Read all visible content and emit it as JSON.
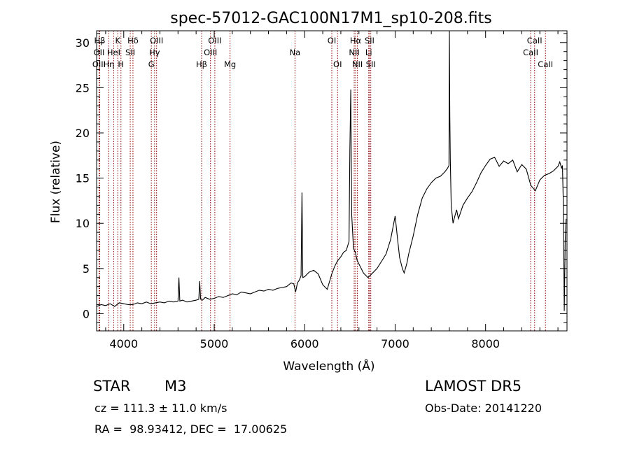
{
  "chart_data": {
    "type": "line",
    "title": "spec-57012-GAC100N17M1_sp10-208.fits",
    "xlabel": "Wavelength (Å)",
    "ylabel": "Flux (relative)",
    "xlim": [
      3700,
      8900
    ],
    "ylim": [
      -1.9,
      31.3
    ],
    "xticks": [
      4000,
      5000,
      6000,
      7000,
      8000
    ],
    "yticks": [
      0,
      5,
      10,
      15,
      20,
      25,
      30
    ],
    "line_color": "#000000",
    "marker_color": "#8b0000",
    "grid": false,
    "series": [
      {
        "x": [
          3700,
          3750,
          3800,
          3850,
          3900,
          3950,
          4000,
          4050,
          4100,
          4150,
          4200,
          4250,
          4300,
          4350,
          4400,
          4450,
          4500,
          4550,
          4600,
          4610,
          4620,
          4650,
          4700,
          4750,
          4800,
          4830,
          4840,
          4850,
          4870,
          4900,
          4950,
          5000,
          5050,
          5100,
          5150,
          5200,
          5250,
          5300,
          5350,
          5400,
          5450,
          5500,
          5550,
          5600,
          5650,
          5700,
          5750,
          5800,
          5850,
          5880,
          5900,
          5920,
          5940,
          5960,
          5970,
          5980,
          6000,
          6050,
          6100,
          6150,
          6200,
          6250,
          6300,
          6330,
          6360,
          6400,
          6430,
          6460,
          6490,
          6500,
          6510,
          6520,
          6540,
          6560,
          6580,
          6600,
          6650,
          6700,
          6750,
          6800,
          6850,
          6900,
          6950,
          7000,
          7030,
          7050,
          7080,
          7100,
          7130,
          7150,
          7200,
          7250,
          7300,
          7350,
          7400,
          7450,
          7500,
          7550,
          7580,
          7595,
          7600,
          7605,
          7610,
          7620,
          7640,
          7660,
          7680,
          7700,
          7750,
          7800,
          7850,
          7900,
          7950,
          8000,
          8050,
          8100,
          8150,
          8200,
          8250,
          8300,
          8350,
          8400,
          8450,
          8500,
          8550,
          8600,
          8650,
          8700,
          8750,
          8800,
          8820,
          8840,
          8850,
          8860,
          8870,
          8880,
          8890
        ],
        "y": [
          0.8,
          1.0,
          0.9,
          1.1,
          0.8,
          1.2,
          1.1,
          1.0,
          1.0,
          1.2,
          1.1,
          1.3,
          1.1,
          1.2,
          1.3,
          1.2,
          1.4,
          1.3,
          1.4,
          4.0,
          1.4,
          1.5,
          1.3,
          1.4,
          1.5,
          1.6,
          3.6,
          1.6,
          1.5,
          1.8,
          1.6,
          1.7,
          1.9,
          1.8,
          2.0,
          2.2,
          2.1,
          2.4,
          2.3,
          2.2,
          2.4,
          2.6,
          2.5,
          2.7,
          2.6,
          2.8,
          2.9,
          3.0,
          3.4,
          3.3,
          2.4,
          3.4,
          3.7,
          4.2,
          13.4,
          4.0,
          4.1,
          4.6,
          4.8,
          4.4,
          3.2,
          2.7,
          4.4,
          5.2,
          5.8,
          6.3,
          6.8,
          7.0,
          8.0,
          18.0,
          24.8,
          11.0,
          7.2,
          6.8,
          5.9,
          5.5,
          4.5,
          4.0,
          4.5,
          5.0,
          5.8,
          6.6,
          8.2,
          10.8,
          8.0,
          6.2,
          5.0,
          4.5,
          5.6,
          6.6,
          8.6,
          11.0,
          12.8,
          13.8,
          14.5,
          15.0,
          15.2,
          15.7,
          16.1,
          16.4,
          31.2,
          22.0,
          17.0,
          12.0,
          10.0,
          10.8,
          11.5,
          10.5,
          12.0,
          12.8,
          13.5,
          14.5,
          15.6,
          16.4,
          17.1,
          17.3,
          16.3,
          16.9,
          16.6,
          17.0,
          15.7,
          16.5,
          16.0,
          14.2,
          13.6,
          14.8,
          15.3,
          15.5,
          15.8,
          16.3,
          16.8,
          16.1,
          16.4,
          12.0,
          0.3,
          8.0,
          10.5
        ]
      }
    ],
    "lines": [
      {
        "label": "Hβ",
        "x": 3735,
        "row": 1
      },
      {
        "label": "OII",
        "x": 3727,
        "row": 2
      },
      {
        "label": "OIII",
        "x": 3727,
        "row": 3
      },
      {
        "label": "Hη",
        "x": 3835,
        "row": 3
      },
      {
        "label": "HeI",
        "x": 3889,
        "row": 2
      },
      {
        "label": "K",
        "x": 3934,
        "row": 1
      },
      {
        "label": "H",
        "x": 3969,
        "row": 3
      },
      {
        "label": "Hδ",
        "x": 4102,
        "row": 1
      },
      {
        "label": "SII",
        "x": 4072,
        "row": 2
      },
      {
        "label": "OIII",
        "x": 4363,
        "row": 1
      },
      {
        "label": "Hγ",
        "x": 4341,
        "row": 2
      },
      {
        "label": "G",
        "x": 4305,
        "row": 3
      },
      {
        "label": "Hβ",
        "x": 4861,
        "row": 3
      },
      {
        "label": "OIII",
        "x": 5007,
        "row": 1
      },
      {
        "label": "OIII",
        "x": 4959,
        "row": 2
      },
      {
        "label": "Mg",
        "x": 5175,
        "row": 3
      },
      {
        "label": "Na",
        "x": 5893,
        "row": 2
      },
      {
        "label": "OI",
        "x": 6300,
        "row": 1
      },
      {
        "label": "OI",
        "x": 6364,
        "row": 3
      },
      {
        "label": "Hα",
        "x": 6563,
        "row": 1
      },
      {
        "label": "NII",
        "x": 6548,
        "row": 2
      },
      {
        "label": "NII",
        "x": 6583,
        "row": 3
      },
      {
        "label": "SII",
        "x": 6717,
        "row": 1
      },
      {
        "label": "Li",
        "x": 6708,
        "row": 2
      },
      {
        "label": "SII",
        "x": 6731,
        "row": 3
      },
      {
        "label": "CaII",
        "x": 8542,
        "row": 1
      },
      {
        "label": "CaII",
        "x": 8498,
        "row": 2
      },
      {
        "label": "CaII",
        "x": 8662,
        "row": 3
      }
    ]
  },
  "info": {
    "object_class": "STAR",
    "subclass": "M3",
    "survey": "LAMOST DR5",
    "cz": "cz = 111.3 ± 11.0 km/s",
    "obs_date": "Obs-Date: 20141220",
    "coords": "RA =  98.93412, DEC =  17.00625"
  }
}
